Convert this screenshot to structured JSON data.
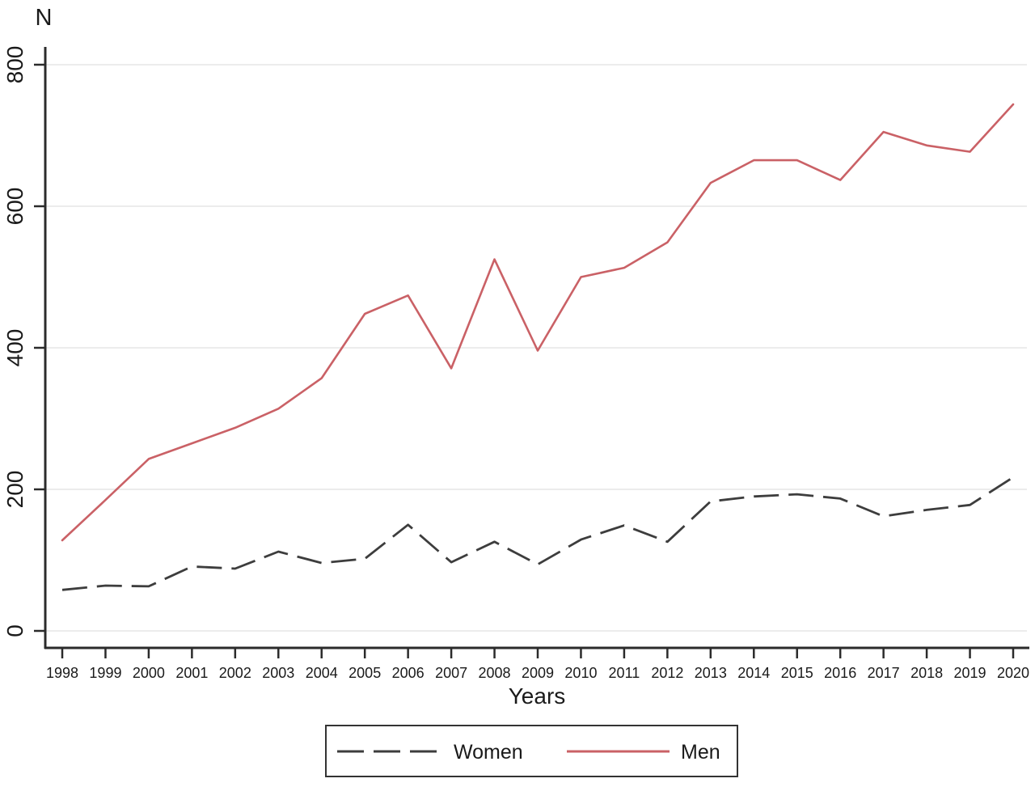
{
  "axes": {
    "y_title": "N",
    "x_title": "Years"
  },
  "legend": {
    "women_label": "Women",
    "men_label": "Men"
  },
  "colors": {
    "men_line": "#ca6166",
    "women_line": "#3d3d3d",
    "gridline": "#ececec",
    "axis": "#2b2b2b",
    "tick_text": "#1a1a1a",
    "legend_border": "#333333",
    "background": "#ffffff"
  },
  "chart_data": {
    "type": "line",
    "title": "",
    "xlabel": "Years",
    "ylabel": "N",
    "x": [
      1998,
      1999,
      2000,
      2001,
      2002,
      2003,
      2004,
      2005,
      2006,
      2007,
      2008,
      2009,
      2010,
      2011,
      2012,
      2013,
      2014,
      2015,
      2016,
      2017,
      2018,
      2019,
      2020
    ],
    "series": [
      {
        "name": "Women",
        "style": "dashed",
        "color": "#3d3d3d",
        "values": [
          58,
          64,
          63,
          91,
          88,
          112,
          96,
          102,
          150,
          97,
          126,
          94,
          129,
          149,
          126,
          183,
          190,
          193,
          187,
          162,
          171,
          178,
          217
        ]
      },
      {
        "name": "Men",
        "style": "solid",
        "color": "#ca6166",
        "values": [
          128,
          185,
          243,
          265,
          287,
          314,
          357,
          448,
          474,
          371,
          525,
          396,
          500,
          513,
          549,
          633,
          665,
          665,
          637,
          705,
          686,
          677,
          744
        ]
      }
    ],
    "ylim": [
      0,
      800
    ],
    "yticks": [
      0,
      200,
      400,
      600,
      800
    ],
    "grid": true,
    "legend_position": "bottom"
  }
}
